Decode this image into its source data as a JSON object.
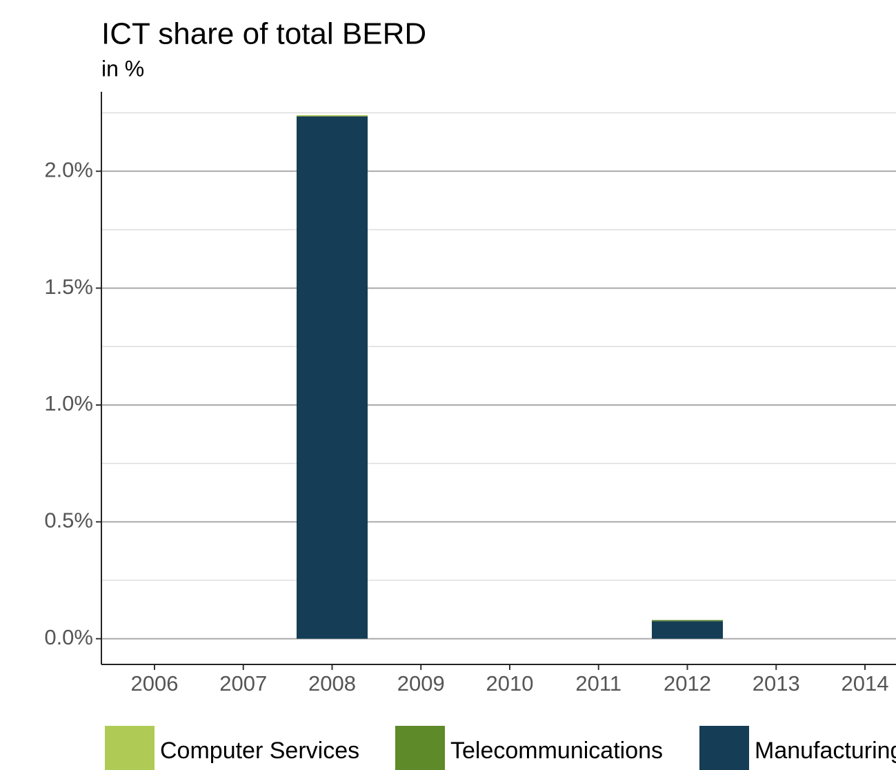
{
  "chart_data": {
    "type": "bar",
    "stacked": true,
    "title": "ICT share of total BERD",
    "subtitle": "in %",
    "categories": [
      "2006",
      "2007",
      "2008",
      "2009",
      "2010",
      "2011",
      "2012",
      "2013",
      "2014"
    ],
    "series": [
      {
        "name": "Computer Services",
        "color": "#b0cb55",
        "values": [
          0,
          0,
          0.005,
          0,
          0,
          0,
          0,
          0,
          0
        ]
      },
      {
        "name": "Telecommunications",
        "color": "#5e8a2a",
        "values": [
          0,
          0,
          0,
          0,
          0,
          0,
          0.005,
          0,
          0
        ]
      },
      {
        "name": "Manufacturing",
        "color": "#153d56",
        "values": [
          0,
          0,
          2.235,
          0,
          0,
          0,
          0.075,
          0,
          0
        ]
      }
    ],
    "ylim": [
      -0.11,
      2.34
    ],
    "yticks": [
      {
        "value": 0,
        "label": "0.0%"
      },
      {
        "value": 0.5,
        "label": "0.5%"
      },
      {
        "value": 1,
        "label": "1.0%"
      },
      {
        "value": 1.5,
        "label": "1.5%"
      },
      {
        "value": 2,
        "label": "2.0%"
      }
    ],
    "grid": true,
    "legend": "bottom"
  }
}
